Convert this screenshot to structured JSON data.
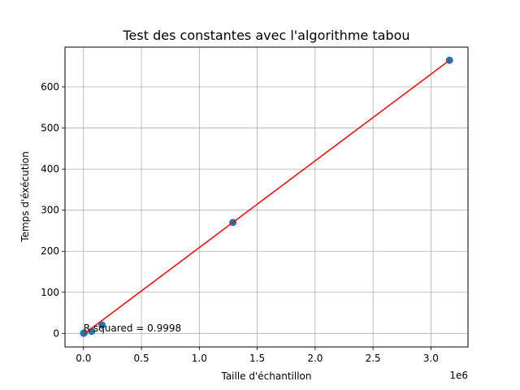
{
  "chart_data": {
    "type": "scatter",
    "title": "Test des constantes avec l'algorithme tabou",
    "xlabel": "Taille d'échantillon",
    "ylabel": "Temps d'éxécution",
    "x_offset_label": "1e6",
    "xlim": [
      -160000,
      3320000
    ],
    "ylim": [
      -33,
      697
    ],
    "x_ticks": [
      0,
      500000,
      1000000,
      1500000,
      2000000,
      2500000,
      3000000
    ],
    "x_tick_labels": [
      "0.0",
      "0.5",
      "1.0",
      "1.5",
      "2.0",
      "2.5",
      "3.0"
    ],
    "y_ticks": [
      0,
      100,
      200,
      300,
      400,
      500,
      600
    ],
    "y_tick_labels": [
      "0",
      "100",
      "200",
      "300",
      "400",
      "500",
      "600"
    ],
    "grid": true,
    "series": [
      {
        "kind": "points",
        "color": "#1f77b4",
        "x": [
          1000,
          5000,
          70000,
          160000,
          1290000,
          3160000
        ],
        "y": [
          0.3,
          1,
          5,
          20,
          270,
          665
        ]
      },
      {
        "kind": "line",
        "color": "#ff0000",
        "x": [
          1000,
          3160000
        ],
        "y": [
          -2,
          665
        ]
      }
    ],
    "annotation": {
      "text": "R squared = 0.9998",
      "x": 0,
      "y": 5
    }
  }
}
